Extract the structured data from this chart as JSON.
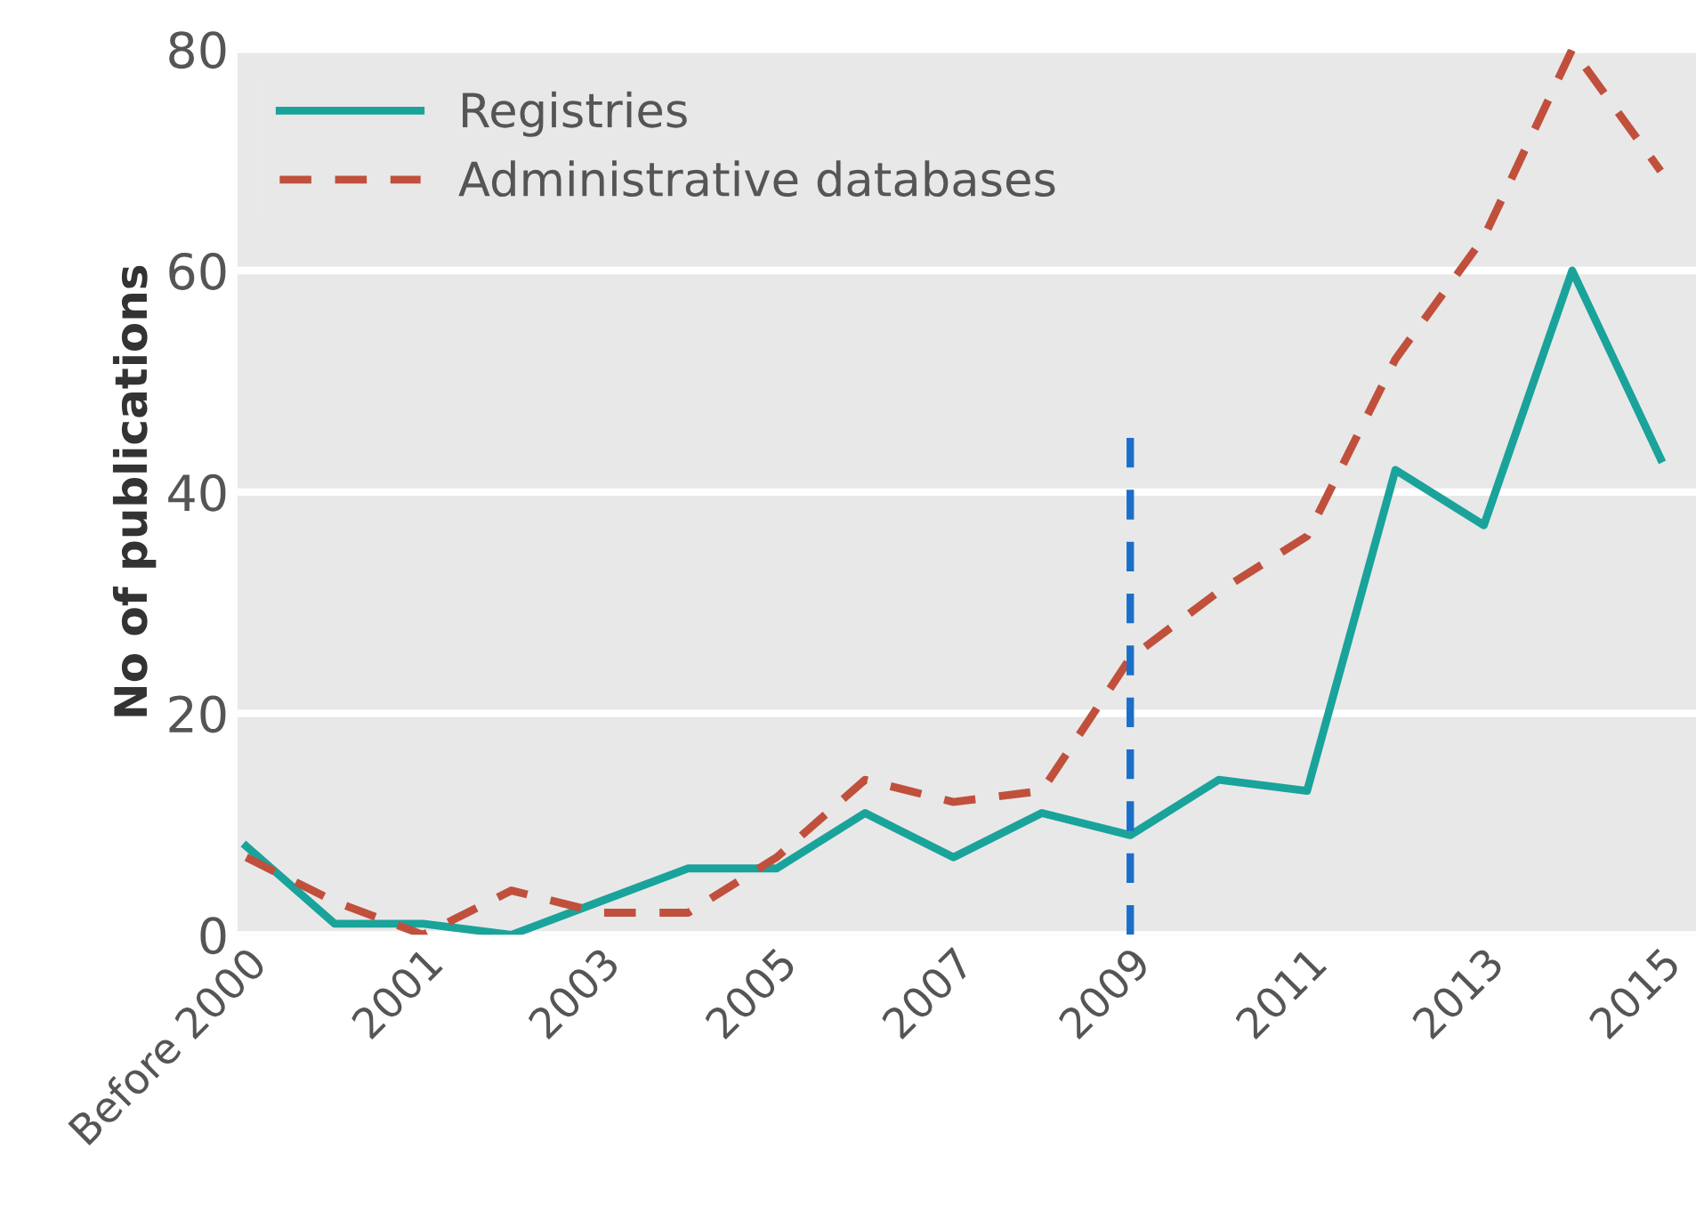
{
  "chart_data": {
    "type": "line",
    "ylabel": "No of publications",
    "categories": [
      "Before 2000",
      null,
      "2001",
      null,
      "2003",
      null,
      "2005",
      null,
      "2007",
      null,
      "2009",
      null,
      "2011",
      null,
      "2013",
      null,
      "2015"
    ],
    "series": [
      {
        "name": "Registries",
        "color": "#1aa39a",
        "line_style": "solid",
        "values": [
          8,
          1,
          1,
          0,
          3,
          6,
          6,
          11,
          7,
          11,
          9,
          14,
          13,
          42,
          37,
          60,
          43
        ]
      },
      {
        "name": "Administrative databases",
        "color": "#c0503c",
        "line_style": "dashed",
        "values": [
          7,
          3,
          0,
          4,
          2,
          2,
          7,
          14,
          12,
          13,
          25,
          31,
          36,
          52,
          63,
          80,
          69
        ]
      }
    ],
    "ylim": [
      0,
      80
    ],
    "yticks": [
      0,
      20,
      40,
      60,
      80
    ],
    "grid": "y",
    "legend": "top left",
    "marker": "none",
    "ref_lines": [
      {
        "axis": "x",
        "value": "2009",
        "color": "#1b6fc9",
        "line_style": "dashed"
      }
    ]
  }
}
